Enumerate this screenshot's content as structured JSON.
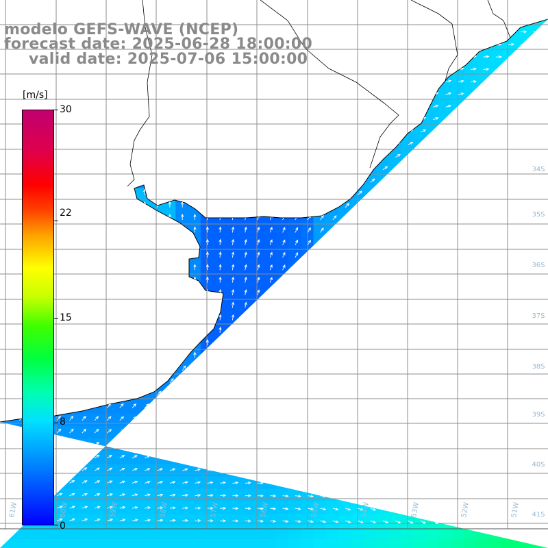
{
  "title": {
    "model": "modelo GEFS-WAVE (NCEP)",
    "forecast": "forecast date: 2025-06-28 18:00:00",
    "valid": "valid date: 2025-07-06 15:00:00"
  },
  "colorbar": {
    "unit": "[m/s]",
    "ticks": [
      "30",
      "22",
      "15",
      "8",
      "0"
    ],
    "tick_values": [
      30,
      22,
      15,
      8,
      0
    ],
    "min": 0,
    "max": 30,
    "colors": [
      "#0000ff",
      "#0080ff",
      "#00e0ff",
      "#00ffb0",
      "#40ff00",
      "#ffff00",
      "#ffa000",
      "#ff0000",
      "#c00070"
    ]
  },
  "map": {
    "variable": "wind speed and direction",
    "land_color": "#ffffff",
    "coastline_color": "#000000",
    "grid_color": "#808080",
    "arrow_color": "#ffffff",
    "right_lat_labels": [
      "34S",
      "35S",
      "36S",
      "37S",
      "38S",
      "39S",
      "40S",
      "41S"
    ],
    "bottom_lon_labels": [
      "61W",
      "60W",
      "59W",
      "58W",
      "57W",
      "56W",
      "55W",
      "54W",
      "53W",
      "52W",
      "51W"
    ],
    "field_min_speed": 3,
    "field_max_speed": 8
  }
}
